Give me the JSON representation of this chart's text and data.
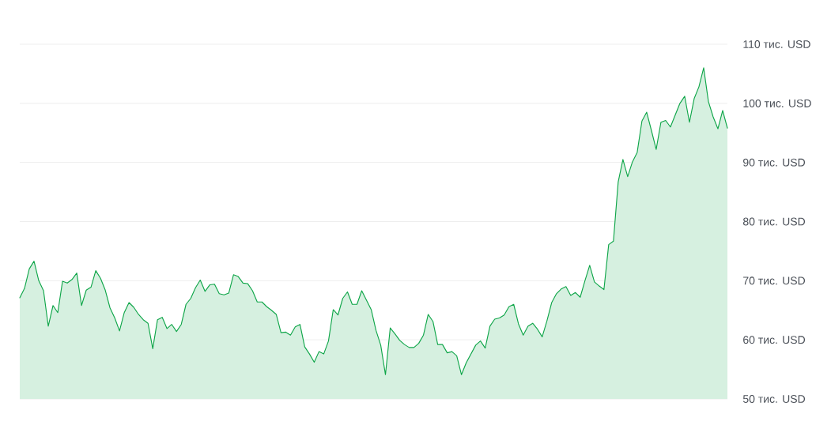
{
  "chart_data": {
    "type": "area",
    "categories": [
      null,
      null,
      null,
      null,
      null,
      null,
      null,
      null,
      null,
      null,
      null,
      null,
      null,
      null,
      null,
      null,
      null,
      null,
      null,
      null,
      null,
      null,
      null,
      null,
      null,
      null,
      null,
      null,
      null,
      null,
      null,
      null,
      null,
      null,
      null,
      null,
      null,
      null,
      null,
      null,
      null,
      null,
      null,
      null,
      null,
      null,
      null,
      null,
      null,
      null,
      null,
      null,
      null,
      null,
      null,
      null,
      null,
      null,
      null,
      null,
      null,
      null,
      null,
      null,
      null,
      null,
      null,
      null,
      null,
      null,
      null,
      null,
      null,
      null,
      null,
      null,
      null,
      null,
      null,
      null,
      null,
      null,
      null,
      null,
      null,
      null,
      null,
      null,
      null,
      null,
      null,
      null,
      null,
      null,
      null,
      null,
      null,
      null,
      null,
      null,
      null,
      null,
      null,
      null,
      null,
      null,
      null,
      null,
      null,
      null,
      null,
      null,
      null,
      null,
      null,
      null,
      null,
      null,
      null,
      null,
      null,
      null,
      null,
      null,
      null,
      null,
      null,
      null,
      null,
      null,
      null,
      null,
      null,
      null,
      null,
      null,
      null,
      null,
      null,
      null,
      null,
      null,
      null,
      null,
      null,
      null,
      null,
      null,
      null,
      null
    ],
    "values": [
      67.1,
      68.7,
      72.0,
      73.3,
      70.0,
      68.3,
      62.3,
      65.8,
      64.6,
      69.9,
      69.6,
      70.2,
      71.3,
      65.8,
      68.4,
      68.9,
      71.7,
      70.4,
      68.4,
      65.4,
      63.7,
      61.5,
      64.6,
      66.3,
      65.5,
      64.3,
      63.4,
      62.8,
      58.5,
      63.4,
      63.8,
      61.9,
      62.6,
      61.4,
      62.6,
      66.0,
      67.0,
      68.8,
      70.1,
      68.2,
      69.3,
      69.4,
      67.8,
      67.6,
      67.9,
      71.0,
      70.7,
      69.6,
      69.5,
      68.3,
      66.4,
      66.4,
      65.6,
      65.0,
      64.3,
      61.2,
      61.3,
      60.8,
      62.2,
      62.6,
      58.8,
      57.6,
      56.2,
      58.0,
      57.6,
      59.8,
      65.1,
      64.2,
      67.0,
      68.1,
      66.0,
      66.0,
      68.3,
      66.7,
      65.1,
      61.6,
      59.1,
      54.1,
      62.0,
      61.0,
      59.9,
      59.2,
      58.7,
      58.7,
      59.4,
      60.8,
      64.3,
      63.1,
      59.2,
      59.2,
      57.8,
      58.0,
      57.3,
      54.1,
      56.1,
      57.6,
      59.1,
      59.8,
      58.6,
      62.3,
      63.5,
      63.7,
      64.2,
      65.6,
      66.0,
      62.7,
      60.8,
      62.3,
      62.8,
      61.8,
      60.5,
      63.2,
      66.3,
      67.8,
      68.6,
      69.0,
      67.5,
      68.0,
      67.2,
      70.0,
      72.6,
      69.8,
      69.1,
      68.5,
      76.1,
      76.7,
      86.7,
      90.5,
      87.6,
      90.1,
      91.7,
      97.0,
      98.5,
      95.4,
      92.2,
      96.8,
      97.1,
      96.0,
      98.0,
      100.0,
      101.2,
      96.8,
      100.8,
      102.8,
      106.0,
      100.3,
      97.7,
      95.7,
      98.8,
      95.8
    ],
    "color": "#0ea548",
    "ylim": [
      50,
      110
    ],
    "yticks": [
      {
        "value": 50,
        "label": "50 тис. USD"
      },
      {
        "value": 60,
        "label": "60 тис. USD"
      },
      {
        "value": 70,
        "label": "70 тис. USD"
      },
      {
        "value": 80,
        "label": "80 тис. USD"
      },
      {
        "value": 90,
        "label": "90 тис. USD"
      },
      {
        "value": 100,
        "label": "100 тис. USD"
      },
      {
        "value": 110,
        "label": "110 тис. USD"
      }
    ],
    "grid": "y",
    "tick_labels": "y"
  }
}
